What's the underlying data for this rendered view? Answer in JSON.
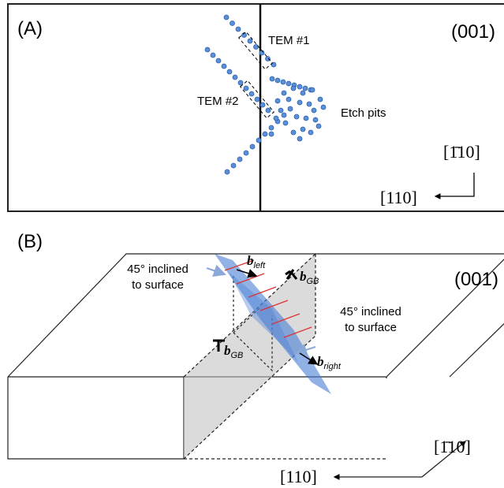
{
  "panel_a": {
    "label": "(A)",
    "plane": "(001)",
    "tem1": "TEM #1",
    "tem2": "TEM #2",
    "etch_pits": "Etch pits",
    "axis_up": "[1̄10]",
    "axis_left": "[110]"
  },
  "panel_b": {
    "label": "(B)",
    "plane": "(001)",
    "note_left": [
      "45° inclined",
      "to surface"
    ],
    "note_right": [
      "45° inclined",
      "to surface"
    ],
    "b_left": {
      "symbol": "b",
      "subscript": "left"
    },
    "b_gb_top": {
      "symbol": "b",
      "subscript": "GB"
    },
    "b_gb_bottom": {
      "symbol": "b",
      "subscript": "GB"
    },
    "b_right": {
      "symbol": "b",
      "subscript": "right"
    },
    "axis_up": "[1̄10]",
    "axis_left": "[110]"
  }
}
